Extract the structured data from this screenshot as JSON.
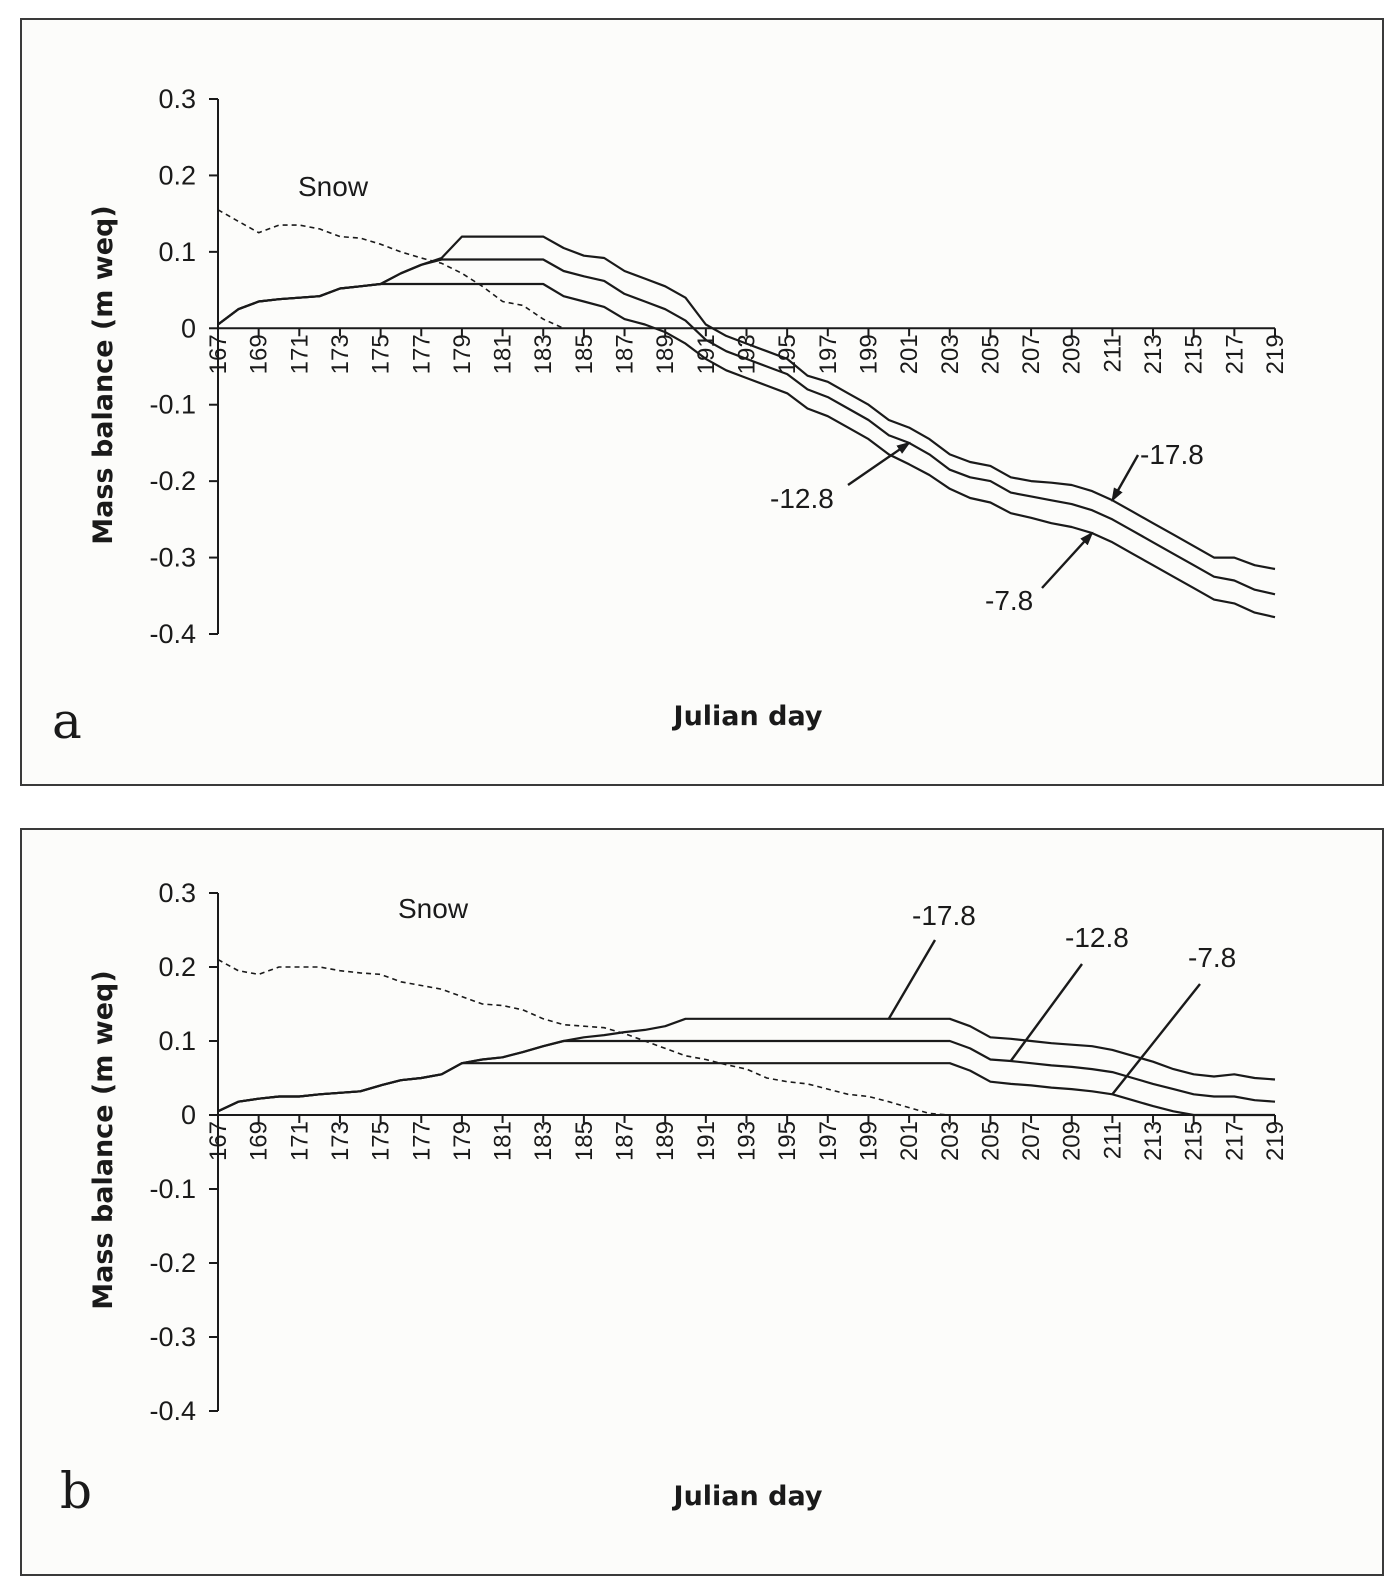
{
  "chart_data": [
    {
      "type": "line",
      "panel_label": "a",
      "xlabel": "Julian day",
      "ylabel": "Mass balance (m weq)",
      "ylim": [
        -0.4,
        0.3
      ],
      "yticks": [
        0.3,
        0.2,
        0.1,
        0,
        -0.1,
        -0.2,
        -0.3,
        -0.4
      ],
      "ytick_labels": [
        "0.3",
        "0.2",
        "0.1",
        "0",
        "-0.1",
        "-0.2",
        "-0.3",
        "-0.4"
      ],
      "xlim": [
        167,
        219
      ],
      "xticks": [
        167,
        169,
        171,
        173,
        175,
        177,
        179,
        181,
        183,
        185,
        187,
        189,
        191,
        193,
        195,
        197,
        199,
        201,
        203,
        205,
        207,
        209,
        211,
        213,
        215,
        217,
        219
      ],
      "grid": false,
      "legend": "none",
      "series": [
        {
          "name": "Snow",
          "style": "dashed",
          "x": [
            167,
            168,
            169,
            170,
            171,
            172,
            173,
            174,
            175,
            176,
            177,
            178,
            179,
            180,
            181,
            182,
            183,
            184
          ],
          "y": [
            0.155,
            0.14,
            0.125,
            0.135,
            0.135,
            0.13,
            0.12,
            0.118,
            0.11,
            0.1,
            0.092,
            0.085,
            0.072,
            0.055,
            0.035,
            0.03,
            0.012,
            0.0
          ]
        },
        {
          "name": "-17.8",
          "style": "solid",
          "x": [
            167,
            168,
            169,
            170,
            171,
            172,
            173,
            174,
            175,
            176,
            177,
            178,
            179,
            180,
            181,
            182,
            183,
            184,
            185,
            186,
            187,
            188,
            189,
            190,
            191,
            192,
            193,
            194,
            195,
            196,
            197,
            198,
            199,
            200,
            201,
            202,
            203,
            204,
            205,
            206,
            207,
            208,
            209,
            210,
            211,
            212,
            213,
            214,
            215,
            216,
            217,
            218,
            219
          ],
          "y": [
            0.005,
            0.025,
            0.035,
            0.038,
            0.04,
            0.042,
            0.052,
            0.055,
            0.058,
            0.072,
            0.083,
            0.092,
            0.12,
            0.12,
            0.12,
            0.12,
            0.12,
            0.105,
            0.095,
            0.092,
            0.075,
            0.065,
            0.055,
            0.04,
            0.005,
            -0.01,
            -0.02,
            -0.03,
            -0.04,
            -0.062,
            -0.07,
            -0.085,
            -0.1,
            -0.12,
            -0.13,
            -0.145,
            -0.165,
            -0.175,
            -0.18,
            -0.195,
            -0.2,
            -0.202,
            -0.205,
            -0.213,
            -0.225,
            -0.24,
            -0.255,
            -0.27,
            -0.285,
            -0.3,
            -0.3,
            -0.31,
            -0.315
          ]
        },
        {
          "name": "-12.8",
          "style": "solid",
          "x": [
            167,
            168,
            169,
            170,
            171,
            172,
            173,
            174,
            175,
            176,
            177,
            178,
            179,
            180,
            181,
            182,
            183,
            184,
            185,
            186,
            187,
            188,
            189,
            190,
            191,
            192,
            193,
            194,
            195,
            196,
            197,
            198,
            199,
            200,
            201,
            202,
            203,
            204,
            205,
            206,
            207,
            208,
            209,
            210,
            211,
            212,
            213,
            214,
            215,
            216,
            217,
            218,
            219
          ],
          "y": [
            0.005,
            0.025,
            0.035,
            0.038,
            0.04,
            0.042,
            0.052,
            0.055,
            0.058,
            0.072,
            0.083,
            0.09,
            0.09,
            0.09,
            0.09,
            0.09,
            0.09,
            0.075,
            0.068,
            0.062,
            0.045,
            0.035,
            0.025,
            0.01,
            -0.015,
            -0.03,
            -0.04,
            -0.05,
            -0.06,
            -0.08,
            -0.09,
            -0.105,
            -0.12,
            -0.14,
            -0.15,
            -0.165,
            -0.185,
            -0.195,
            -0.2,
            -0.215,
            -0.22,
            -0.225,
            -0.23,
            -0.238,
            -0.25,
            -0.265,
            -0.28,
            -0.295,
            -0.31,
            -0.325,
            -0.33,
            -0.342,
            -0.348
          ]
        },
        {
          "name": "-7.8",
          "style": "solid",
          "x": [
            167,
            168,
            169,
            170,
            171,
            172,
            173,
            174,
            175,
            176,
            177,
            178,
            179,
            180,
            181,
            182,
            183,
            184,
            185,
            186,
            187,
            188,
            189,
            190,
            191,
            192,
            193,
            194,
            195,
            196,
            197,
            198,
            199,
            200,
            201,
            202,
            203,
            204,
            205,
            206,
            207,
            208,
            209,
            210,
            211,
            212,
            213,
            214,
            215,
            216,
            217,
            218,
            219
          ],
          "y": [
            0.005,
            0.025,
            0.035,
            0.038,
            0.04,
            0.042,
            0.052,
            0.055,
            0.058,
            0.058,
            0.058,
            0.058,
            0.058,
            0.058,
            0.058,
            0.058,
            0.058,
            0.042,
            0.035,
            0.028,
            0.012,
            0.005,
            -0.005,
            -0.02,
            -0.04,
            -0.055,
            -0.065,
            -0.075,
            -0.085,
            -0.105,
            -0.115,
            -0.13,
            -0.145,
            -0.165,
            -0.178,
            -0.192,
            -0.21,
            -0.222,
            -0.228,
            -0.242,
            -0.248,
            -0.255,
            -0.26,
            -0.268,
            -0.28,
            -0.295,
            -0.31,
            -0.325,
            -0.34,
            -0.355,
            -0.36,
            -0.372,
            -0.378
          ]
        }
      ],
      "annotations": [
        {
          "text": "Snow"
        },
        {
          "text": "-17.8"
        },
        {
          "text": "-12.8"
        },
        {
          "text": "-7.8"
        }
      ]
    },
    {
      "type": "line",
      "panel_label": "b",
      "xlabel": "Julian day",
      "ylabel": "Mass balance (m weq)",
      "ylim": [
        -0.4,
        0.3
      ],
      "yticks": [
        0.3,
        0.2,
        0.1,
        0,
        -0.1,
        -0.2,
        -0.3,
        -0.4
      ],
      "ytick_labels": [
        "0.3",
        "0.2",
        "0.1",
        "0",
        "-0.1",
        "-0.2",
        "-0.3",
        "-0.4"
      ],
      "xlim": [
        167,
        219
      ],
      "xticks": [
        167,
        169,
        171,
        173,
        175,
        177,
        179,
        181,
        183,
        185,
        187,
        189,
        191,
        193,
        195,
        197,
        199,
        201,
        203,
        205,
        207,
        209,
        211,
        213,
        215,
        217,
        219
      ],
      "grid": false,
      "legend": "none",
      "series": [
        {
          "name": "Snow",
          "style": "dashed",
          "x": [
            167,
            168,
            169,
            170,
            171,
            172,
            173,
            174,
            175,
            176,
            177,
            178,
            179,
            180,
            181,
            182,
            183,
            184,
            185,
            186,
            187,
            188,
            189,
            190,
            191,
            192,
            193,
            194,
            195,
            196,
            197,
            198,
            199,
            200,
            201,
            202,
            203
          ],
          "y": [
            0.21,
            0.195,
            0.19,
            0.2,
            0.2,
            0.2,
            0.195,
            0.192,
            0.19,
            0.18,
            0.175,
            0.17,
            0.16,
            0.15,
            0.148,
            0.142,
            0.13,
            0.122,
            0.12,
            0.118,
            0.11,
            0.1,
            0.09,
            0.08,
            0.075,
            0.068,
            0.062,
            0.05,
            0.045,
            0.042,
            0.035,
            0.028,
            0.025,
            0.018,
            0.01,
            0.002,
            0.0
          ]
        },
        {
          "name": "-17.8",
          "style": "solid",
          "x": [
            167,
            168,
            169,
            170,
            171,
            172,
            173,
            174,
            175,
            176,
            177,
            178,
            179,
            180,
            181,
            182,
            183,
            184,
            185,
            186,
            187,
            188,
            189,
            190,
            191,
            192,
            193,
            194,
            195,
            196,
            197,
            198,
            199,
            200,
            201,
            202,
            203,
            204,
            205,
            206,
            207,
            208,
            209,
            210,
            211,
            212,
            213,
            214,
            215,
            216,
            217,
            218,
            219
          ],
          "y": [
            0.005,
            0.018,
            0.022,
            0.025,
            0.025,
            0.028,
            0.03,
            0.032,
            0.04,
            0.047,
            0.05,
            0.055,
            0.07,
            0.075,
            0.078,
            0.085,
            0.093,
            0.1,
            0.105,
            0.108,
            0.112,
            0.115,
            0.12,
            0.13,
            0.13,
            0.13,
            0.13,
            0.13,
            0.13,
            0.13,
            0.13,
            0.13,
            0.13,
            0.13,
            0.13,
            0.13,
            0.13,
            0.12,
            0.105,
            0.103,
            0.1,
            0.097,
            0.095,
            0.093,
            0.088,
            0.08,
            0.072,
            0.062,
            0.055,
            0.052,
            0.055,
            0.05,
            0.048
          ]
        },
        {
          "name": "-12.8",
          "style": "solid",
          "x": [
            167,
            168,
            169,
            170,
            171,
            172,
            173,
            174,
            175,
            176,
            177,
            178,
            179,
            180,
            181,
            182,
            183,
            184,
            185,
            186,
            187,
            188,
            189,
            190,
            191,
            192,
            193,
            194,
            195,
            196,
            197,
            198,
            199,
            200,
            201,
            202,
            203,
            204,
            205,
            206,
            207,
            208,
            209,
            210,
            211,
            212,
            213,
            214,
            215,
            216,
            217,
            218,
            219
          ],
          "y": [
            0.005,
            0.018,
            0.022,
            0.025,
            0.025,
            0.028,
            0.03,
            0.032,
            0.04,
            0.047,
            0.05,
            0.055,
            0.07,
            0.075,
            0.078,
            0.085,
            0.093,
            0.1,
            0.1,
            0.1,
            0.1,
            0.1,
            0.1,
            0.1,
            0.1,
            0.1,
            0.1,
            0.1,
            0.1,
            0.1,
            0.1,
            0.1,
            0.1,
            0.1,
            0.1,
            0.1,
            0.1,
            0.09,
            0.075,
            0.073,
            0.07,
            0.067,
            0.065,
            0.062,
            0.058,
            0.05,
            0.042,
            0.035,
            0.028,
            0.025,
            0.025,
            0.02,
            0.018
          ]
        },
        {
          "name": "-7.8",
          "style": "solid",
          "x": [
            167,
            168,
            169,
            170,
            171,
            172,
            173,
            174,
            175,
            176,
            177,
            178,
            179,
            180,
            181,
            182,
            183,
            184,
            185,
            186,
            187,
            188,
            189,
            190,
            191,
            192,
            193,
            194,
            195,
            196,
            197,
            198,
            199,
            200,
            201,
            202,
            203,
            204,
            205,
            206,
            207,
            208,
            209,
            210,
            211,
            212,
            213,
            214,
            215,
            216,
            217,
            218,
            219
          ],
          "y": [
            0.005,
            0.018,
            0.022,
            0.025,
            0.025,
            0.028,
            0.03,
            0.032,
            0.04,
            0.047,
            0.05,
            0.055,
            0.07,
            0.07,
            0.07,
            0.07,
            0.07,
            0.07,
            0.07,
            0.07,
            0.07,
            0.07,
            0.07,
            0.07,
            0.07,
            0.07,
            0.07,
            0.07,
            0.07,
            0.07,
            0.07,
            0.07,
            0.07,
            0.07,
            0.07,
            0.07,
            0.07,
            0.06,
            0.045,
            0.042,
            0.04,
            0.037,
            0.035,
            0.032,
            0.028,
            0.02,
            0.012,
            0.005,
            0.0,
            0.0,
            0.0,
            0.0,
            0.0
          ]
        }
      ],
      "annotations": [
        {
          "text": "Snow"
        },
        {
          "text": "-17.8"
        },
        {
          "text": "-12.8"
        },
        {
          "text": "-7.8"
        }
      ]
    }
  ]
}
